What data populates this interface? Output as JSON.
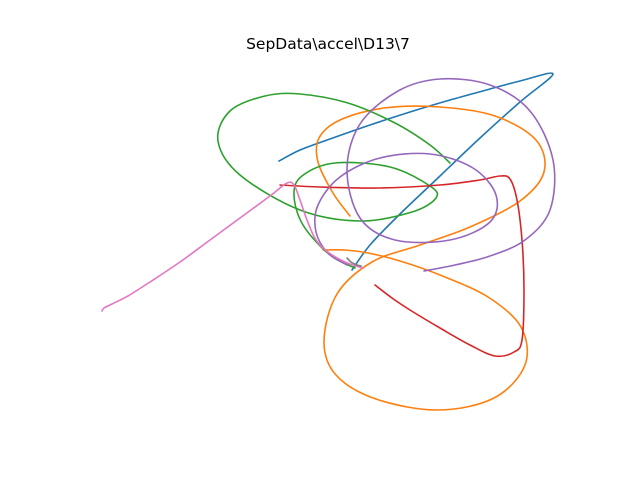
{
  "chart_data": {
    "type": "line",
    "title": "SepData\\accel\\D13\\7",
    "xlabel": "",
    "ylabel": "",
    "axes_visible": false,
    "grid": false,
    "legend": "none",
    "series": [
      {
        "color": "#1f77b4",
        "x": [
          279,
          300,
          330,
          370,
          410,
          450,
          490,
          520,
          553,
          520,
          480,
          440,
          400,
          370,
          352
        ],
        "y": [
          161,
          150,
          139,
          125,
          112,
          100,
          89,
          81,
          74,
          102,
          138,
          176,
          214,
          245,
          270
        ]
      },
      {
        "color": "#ff7f0e",
        "x": [
          350,
          333,
          318,
          319,
          340,
          384,
          440,
          495,
          536,
          544,
          520,
          470,
          420,
          372,
          337,
          324,
          336,
          376,
          438,
          494,
          525,
          521,
          488,
          440,
          400,
          368,
          345,
          323
        ],
        "y": [
          216,
          193,
          162,
          138,
          120,
          108,
          107,
          116,
          140,
          172,
          201,
          227,
          245,
          262,
          294,
          341,
          375,
          399,
          410,
          398,
          365,
          327,
          297,
          275,
          261,
          253,
          250,
          250
        ]
      },
      {
        "color": "#2ca02c",
        "x": [
          355,
          330,
          303,
          294,
          302,
          335,
          390,
          430,
          436,
          412,
          360,
          300,
          240,
          218,
          230,
          265,
          300,
          348,
          395,
          430,
          450
        ],
        "y": [
          268,
          255,
          225,
          195,
          176,
          163,
          167,
          186,
          198,
          212,
          221,
          210,
          175,
          141,
          111,
          96,
          94,
          103,
          123,
          145,
          163
        ]
      },
      {
        "color": "#d62728",
        "x": [
          280,
          320,
          380,
          440,
          480,
          500,
          510,
          517,
          522,
          524,
          522,
          514,
          495,
          470,
          440,
          410,
          392,
          375
        ],
        "y": [
          185,
          187,
          188,
          185,
          180,
          176,
          179,
          200,
          240,
          290,
          340,
          352,
          356,
          345,
          328,
          310,
          298,
          285
        ]
      },
      {
        "color": "#9467bd",
        "x": [
          347,
          328,
          316,
          318,
          340,
          380,
          430,
          473,
          496,
          490,
          450,
          395,
          360,
          347,
          360,
          398,
          440,
          490,
          530,
          553,
          550,
          525,
          490,
          455,
          424
        ],
        "y": [
          265,
          253,
          232,
          205,
          177,
          158,
          154,
          168,
          195,
          222,
          240,
          240,
          218,
          170,
          124,
          91,
          79,
          85,
          111,
          160,
          210,
          240,
          256,
          265,
          271
        ]
      },
      {
        "color": "#e377c2",
        "x": [
          363,
          345,
          328,
          316,
          307,
          300,
          294,
          287,
          270,
          240,
          210,
          180,
          150,
          128,
          112,
          104,
          102
        ],
        "y": [
          268,
          262,
          252,
          240,
          220,
          200,
          185,
          183,
          196,
          218,
          240,
          262,
          282,
          296,
          304,
          308,
          311
        ]
      },
      {
        "color": "#7f7f7f",
        "x": [
          347,
          351,
          357,
          361
        ],
        "y": [
          258,
          262,
          265,
          266
        ]
      }
    ]
  }
}
